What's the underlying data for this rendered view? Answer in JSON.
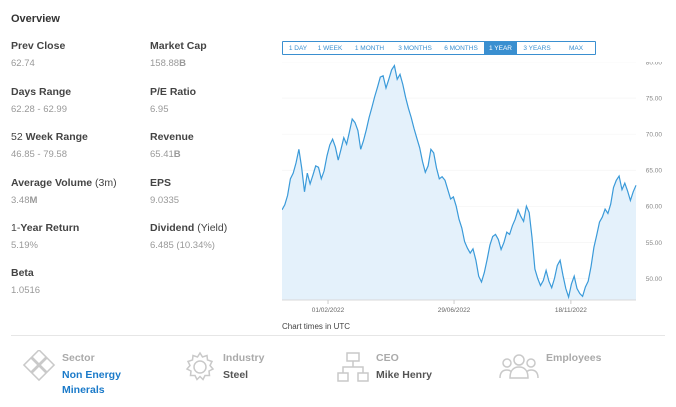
{
  "overview": {
    "title": "Overview",
    "stats": {
      "prev_close": {
        "label": "Prev Close",
        "value": "62.74"
      },
      "days_range": {
        "label": "Days Range",
        "value": "62.28 - 62.99"
      },
      "week52_range": {
        "label_num": "52",
        "label_rest": "Week Range",
        "value": "46.85 - 79.58"
      },
      "avg_volume": {
        "label_main": "Average Volume",
        "label_unit": "(3m)",
        "value_num": "3.48",
        "value_unit": "M"
      },
      "one_year_return": {
        "label_num": "1-",
        "label_rest": "Year Return",
        "value": "5.19%"
      },
      "beta": {
        "label": "Beta",
        "value": "1.0516"
      },
      "market_cap": {
        "label": "Market Cap",
        "value_num": "158.88",
        "value_unit": "B"
      },
      "pe_ratio": {
        "label": "P/E Ratio",
        "value": "6.95"
      },
      "revenue": {
        "label": "Revenue",
        "value_num": "65.41",
        "value_unit": "B"
      },
      "eps": {
        "label": "EPS",
        "value": "9.0335"
      },
      "dividend": {
        "label_main": "Dividend",
        "label_paren": "(Yield)",
        "value": "6.485 (10.34%)"
      }
    }
  },
  "range_tabs": {
    "items": [
      "1 DAY",
      "1 WEEK",
      "1 MONTH",
      "3 MONTHS",
      "6 MONTHS",
      "1 YEAR",
      "3 YEARS",
      "MAX"
    ],
    "active": "1 YEAR"
  },
  "chart_note": "Chart times in UTC",
  "chart_data": {
    "type": "area",
    "title": "",
    "xlabel": "",
    "ylabel": "",
    "ylim": [
      47,
      80
    ],
    "y_ticks": [
      50,
      55,
      60,
      65,
      70,
      75,
      80
    ],
    "y_tick_labels": [
      "50.00",
      "55.00",
      "60.00",
      "65.00",
      "70.00",
      "75.00",
      "80.00"
    ],
    "x_tick_labels": [
      {
        "label": "01/02/2022",
        "at": 0.13
      },
      {
        "label": "29/06/2022",
        "at": 0.486
      },
      {
        "label": "18/11/2022",
        "at": 0.816
      }
    ],
    "line_color": "#3a9ad9",
    "fill_color": "#e4f1fb",
    "values": [
      59.5,
      60.2,
      61.5,
      63.8,
      64.6,
      66.0,
      67.9,
      65.3,
      62.0,
      64.6,
      63.1,
      64.3,
      65.6,
      65.4,
      63.8,
      64.9,
      67.0,
      68.5,
      69.3,
      68.2,
      66.4,
      67.9,
      69.5,
      68.6,
      70.3,
      72.1,
      71.6,
      70.5,
      67.9,
      69.1,
      70.6,
      72.3,
      73.7,
      75.2,
      76.5,
      77.9,
      78.1,
      76.4,
      77.6,
      78.9,
      79.5,
      77.6,
      78.3,
      76.9,
      75.1,
      73.6,
      72.3,
      70.8,
      69.4,
      68.1,
      66.2,
      64.7,
      65.6,
      67.9,
      67.4,
      65.3,
      63.8,
      64.1,
      63.6,
      62.3,
      61.0,
      61.3,
      60.0,
      58.2,
      57.0,
      55.1,
      54.2,
      53.5,
      54.1,
      52.5,
      50.3,
      49.5,
      50.8,
      52.6,
      54.6,
      55.8,
      56.1,
      55.4,
      54.0,
      55.0,
      56.4,
      56.1,
      57.3,
      58.2,
      59.5,
      58.6,
      57.9,
      60.0,
      59.1,
      55.7,
      51.3,
      50.0,
      49.0,
      49.7,
      51.1,
      49.6,
      48.7,
      50.0,
      51.8,
      52.5,
      50.4,
      48.6,
      47.4,
      49.2,
      50.3,
      48.6,
      47.9,
      47.5,
      48.8,
      49.6,
      51.6,
      54.3,
      56.0,
      57.8,
      58.5,
      59.6,
      59.0,
      60.3,
      62.6,
      63.6,
      64.2,
      62.3,
      63.2,
      62.1,
      60.8,
      62.0,
      62.9
    ]
  },
  "company_meta": {
    "sector": {
      "label": "Sector",
      "value_line1": "Non Energy",
      "value_line2": "Minerals"
    },
    "industry": {
      "label": "Industry",
      "value": "Steel"
    },
    "ceo": {
      "label": "CEO",
      "value": "Mike Henry"
    },
    "employees": {
      "label": "Employees",
      "value": ""
    }
  }
}
